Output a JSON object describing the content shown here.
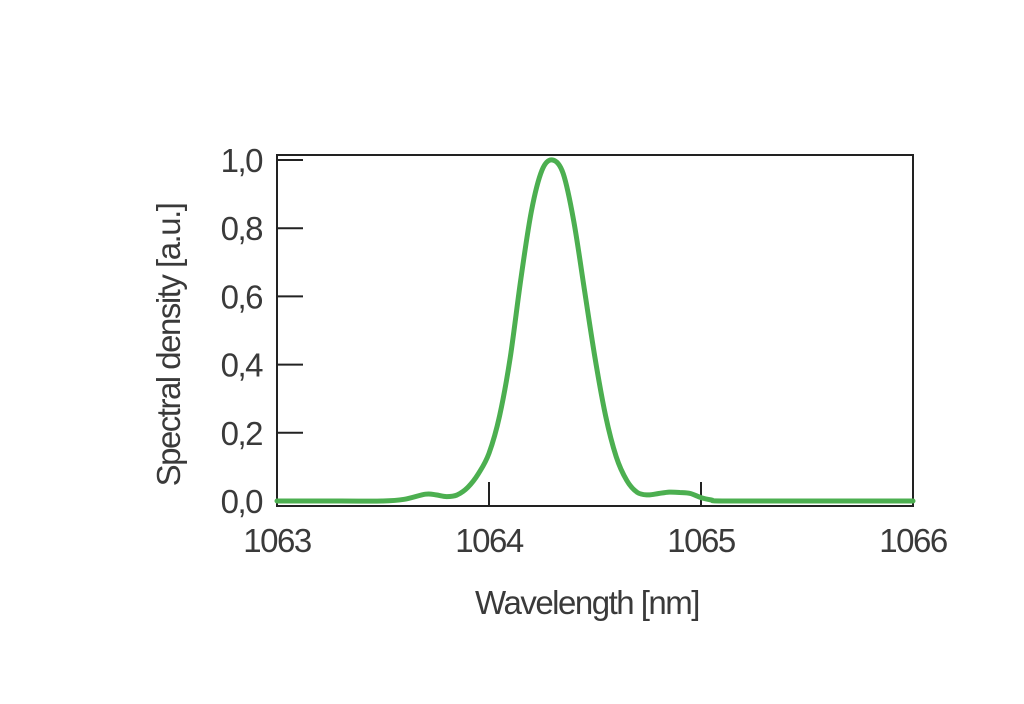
{
  "chart_data": {
    "type": "line",
    "title": "",
    "xlabel": "Wavelength [nm]",
    "ylabel": "Spectral density [a.u.]",
    "xlim": [
      1063,
      1066
    ],
    "ylim": [
      0,
      1.0
    ],
    "x_ticks": [
      1063,
      1064,
      1065,
      1066
    ],
    "x_tick_labels": [
      "1063",
      "1064",
      "1065",
      "1066"
    ],
    "y_ticks": [
      0,
      0.2,
      0.4,
      0.6,
      0.8,
      1.0
    ],
    "y_tick_labels": [
      "0,0",
      "0,2",
      "0,4",
      "0,6",
      "0,8",
      "1,0"
    ],
    "grid": false,
    "legend": "none",
    "series": [
      {
        "color": "#4caf50",
        "x": [
          1063.0,
          1063.3,
          1063.5,
          1063.6,
          1063.7,
          1063.75,
          1063.8,
          1063.85,
          1063.9,
          1063.95,
          1064.0,
          1064.05,
          1064.1,
          1064.15,
          1064.2,
          1064.25,
          1064.3,
          1064.35,
          1064.4,
          1064.45,
          1064.5,
          1064.55,
          1064.6,
          1064.65,
          1064.7,
          1064.75,
          1064.8,
          1064.85,
          1064.9,
          1064.95,
          1065.0,
          1065.05,
          1065.1,
          1065.5,
          1066.0
        ],
        "y": [
          0.0,
          0.0,
          0.0,
          0.005,
          0.02,
          0.018,
          0.013,
          0.018,
          0.04,
          0.08,
          0.14,
          0.25,
          0.42,
          0.65,
          0.85,
          0.97,
          1.0,
          0.96,
          0.82,
          0.62,
          0.42,
          0.25,
          0.13,
          0.06,
          0.025,
          0.018,
          0.022,
          0.026,
          0.025,
          0.022,
          0.01,
          0.003,
          0.0,
          0.0,
          0.0
        ]
      }
    ]
  }
}
